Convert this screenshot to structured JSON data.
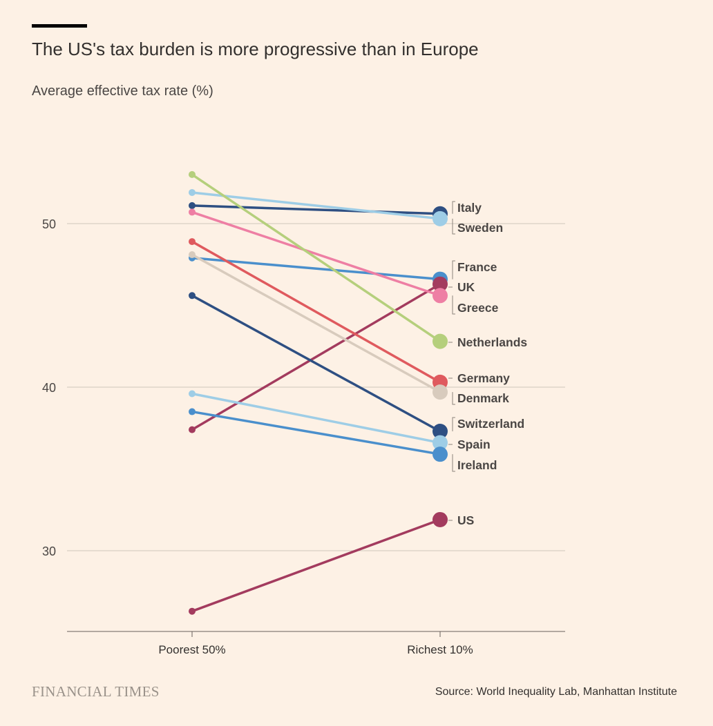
{
  "header": {
    "title": "The US's tax burden is more progressive than in Europe",
    "subtitle": "Average effective tax rate (%)"
  },
  "footer": {
    "logo": "FINANCIAL TIMES",
    "source": "Source: World Inequality Lab, Manhattan Institute"
  },
  "chart_data": {
    "type": "line",
    "categories": [
      "Poorest 50%",
      "Richest 10%"
    ],
    "yticks": [
      30,
      40,
      50
    ],
    "ylim": [
      25,
      56
    ],
    "grid": true,
    "series": [
      {
        "name": "Italy",
        "values": [
          51.1,
          50.6
        ],
        "color": "#2e4f82"
      },
      {
        "name": "Sweden",
        "values": [
          51.9,
          50.3
        ],
        "color": "#9ecde6"
      },
      {
        "name": "France",
        "values": [
          47.9,
          46.6
        ],
        "color": "#4a8fcc"
      },
      {
        "name": "UK",
        "values": [
          37.4,
          46.3
        ],
        "color": "#a33b5e"
      },
      {
        "name": "Greece",
        "values": [
          50.7,
          45.6
        ],
        "color": "#ee7fa4"
      },
      {
        "name": "Netherlands",
        "values": [
          53.0,
          42.8
        ],
        "color": "#b5cf7c"
      },
      {
        "name": "Germany",
        "values": [
          48.9,
          40.3
        ],
        "color": "#df5a5e"
      },
      {
        "name": "Denmark",
        "values": [
          48.1,
          39.7
        ],
        "color": "#d8cbbd"
      },
      {
        "name": "Switzerland",
        "values": [
          45.6,
          37.3
        ],
        "color": "#2e4f82"
      },
      {
        "name": "Spain",
        "values": [
          39.6,
          36.6
        ],
        "color": "#9ecde6"
      },
      {
        "name": "Ireland",
        "values": [
          38.5,
          35.9
        ],
        "color": "#4a8fcc"
      },
      {
        "name": "US",
        "values": [
          26.3,
          31.9
        ],
        "color": "#a33b5e"
      }
    ]
  }
}
